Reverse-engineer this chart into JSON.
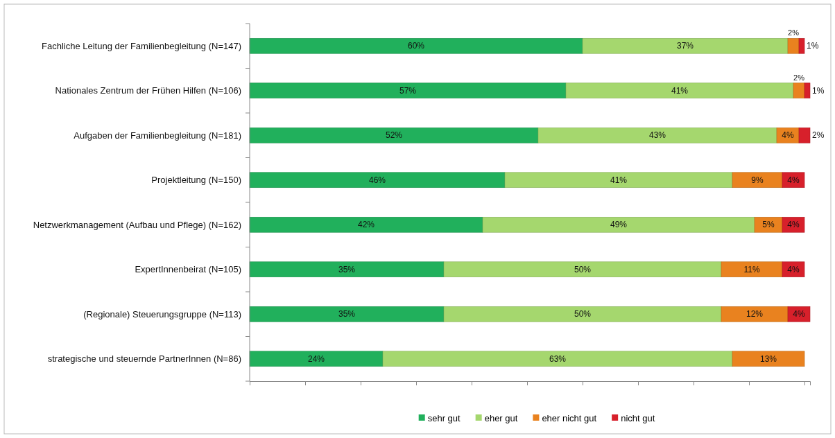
{
  "chart_data": {
    "type": "bar",
    "orientation": "horizontal",
    "stacked": true,
    "categories": [
      "Fachliche Leitung der Familienbegleitung (N=147)",
      "Nationales Zentrum der Frühen Hilfen (N=106)",
      "Aufgaben der Familienbegleitung  (N=181)",
      "Projektleitung (N=150)",
      "Netzwerkmanagement  (Aufbau und Pflege) (N=162)",
      "ExpertInnenbeirat (N=105)",
      "(Regionale) Steuerungsgruppe (N=113)",
      "strategische und steuernde PartnerInnen (N=86)"
    ],
    "series": [
      {
        "name": "sehr gut",
        "color": "#21b05c",
        "values": [
          60,
          57,
          52,
          46,
          42,
          35,
          35,
          24
        ],
        "value_labels": [
          "60%",
          "57%",
          "52%",
          "46%",
          "42%",
          "35%",
          "35%",
          "24%"
        ]
      },
      {
        "name": "eher gut",
        "color": "#a5d76e",
        "values": [
          37,
          41,
          43,
          41,
          49,
          50,
          50,
          63
        ],
        "value_labels": [
          "37%",
          "41%",
          "43%",
          "41%",
          "49%",
          "50%",
          "50%",
          "63%"
        ]
      },
      {
        "name": "eher nicht gut",
        "color": "#e9821f",
        "values": [
          2,
          2,
          4,
          9,
          5,
          11,
          12,
          13
        ],
        "value_labels": [
          "2%",
          "2%",
          "4%",
          "9%",
          "5%",
          "11%",
          "12%",
          "13%"
        ]
      },
      {
        "name": "nicht gut",
        "color": "#d7202b",
        "values": [
          1,
          1,
          2,
          4,
          4,
          4,
          4,
          null
        ],
        "value_labels": [
          "1%",
          "1%",
          "2%",
          "4%",
          "4%",
          "4%",
          "4%",
          null
        ]
      }
    ],
    "xlim": [
      0,
      101
    ],
    "xticks": [
      {
        "value": 0,
        "label": null
      },
      {
        "value": 10,
        "label": null
      },
      {
        "value": 20,
        "label": null
      },
      {
        "value": 30,
        "label": null
      },
      {
        "value": 40,
        "label": null
      },
      {
        "value": 50,
        "label": null
      },
      {
        "value": 60,
        "label": null
      },
      {
        "value": 70,
        "label": null
      },
      {
        "value": 80,
        "label": null
      },
      {
        "value": 90,
        "label": null
      },
      {
        "value": 100,
        "label": null
      }
    ],
    "tick_labels": "y",
    "grid": false,
    "legend": "bottom"
  }
}
